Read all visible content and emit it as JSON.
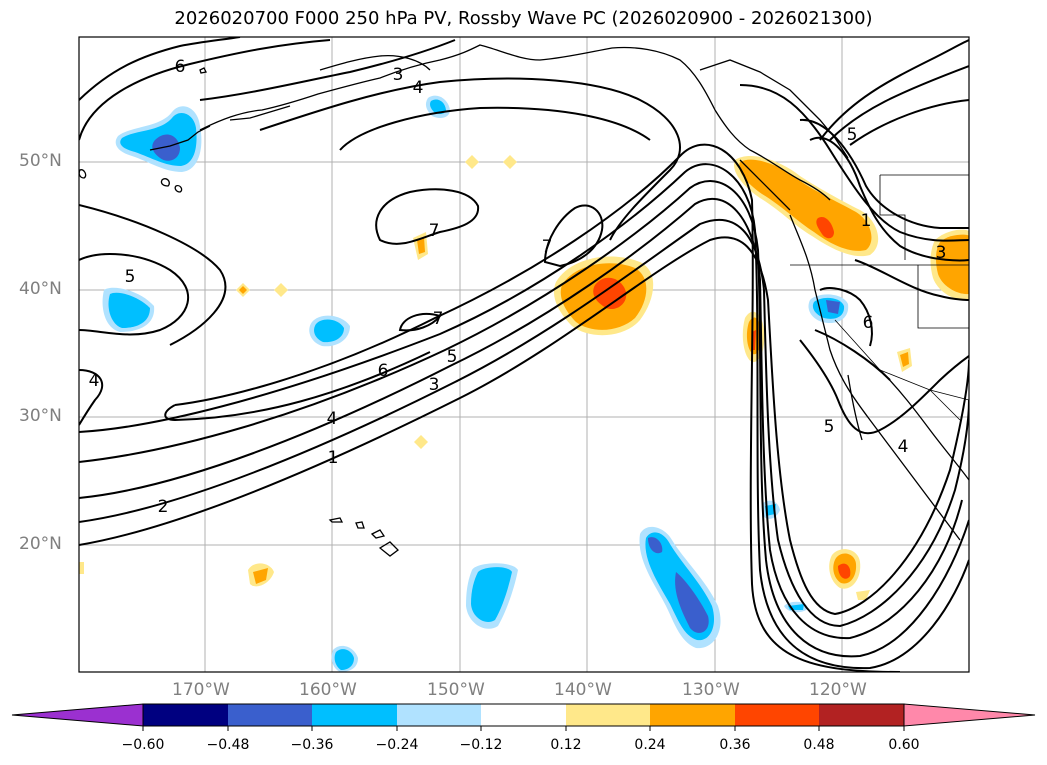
{
  "title": "2026020700 F000 250 hPa PV, Rossby Wave PC (2026020900 - 2026021300)",
  "lat_labels": [
    "50°N",
    "40°N",
    "30°N",
    "20°N"
  ],
  "lon_labels": [
    "170°W",
    "160°W",
    "150°W",
    "140°W",
    "130°W",
    "120°W"
  ],
  "contour_labels": [
    "6",
    "4",
    "3",
    "7",
    "5",
    "7",
    "7",
    "5",
    "6",
    "5",
    "3",
    "4",
    "1",
    "2",
    "4",
    "1",
    "3",
    "6",
    "5",
    "4"
  ],
  "colorbar": {
    "ticks": [
      "−0.60",
      "−0.48",
      "−0.36",
      "−0.24",
      "−0.12",
      "0.12",
      "0.24",
      "0.36",
      "0.48",
      "0.60"
    ],
    "colors": [
      "#9b30d0",
      "#000080",
      "#3a5fcd",
      "#00bfff",
      "#b0e2ff",
      "#ffffff",
      "#ffe88a",
      "#ffa500",
      "#ff4500",
      "#b22222",
      "#ff88aa"
    ]
  },
  "colors": {
    "orange": "#ffa500",
    "light_yellow": "#ffe88a",
    "red_orange": "#ff4500",
    "deep_sky_blue": "#00bfff",
    "light_blue": "#b0e2ff",
    "royal_blue": "#3a5fcd",
    "gridline": "#b0b0b0"
  }
}
